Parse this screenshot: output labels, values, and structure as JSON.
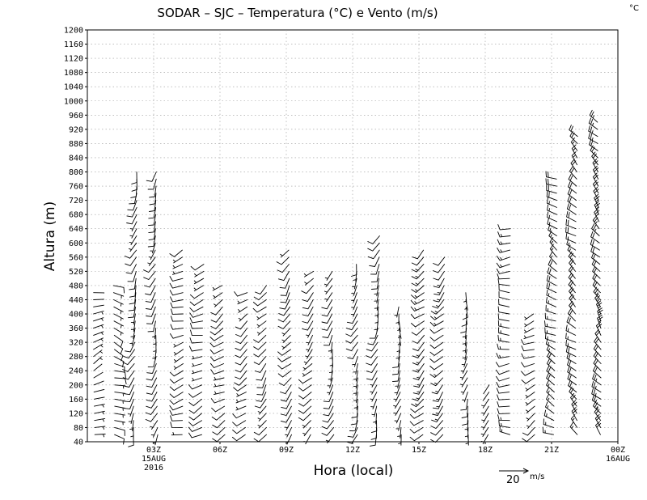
{
  "chart_data": {
    "type": "wind-barbs",
    "title": "SODAR – SJC – Temperatura (°C) e Vento (m/s)",
    "corner_unit": "°C",
    "xlabel": "Hora (local)",
    "ylabel": "Altura (m)",
    "ylim": [
      40,
      1200
    ],
    "yticks": [
      40,
      80,
      120,
      160,
      200,
      240,
      280,
      320,
      360,
      400,
      440,
      480,
      520,
      560,
      600,
      640,
      680,
      720,
      760,
      800,
      840,
      880,
      920,
      960,
      1000,
      1040,
      1080,
      1120,
      1160,
      1200
    ],
    "xlim_hours": [
      0,
      24
    ],
    "xticks": [
      {
        "hour": 3,
        "label": "03Z",
        "sub1": "15AUG",
        "sub2": "2016"
      },
      {
        "hour": 6,
        "label": "06Z",
        "sub1": "",
        "sub2": ""
      },
      {
        "hour": 9,
        "label": "09Z",
        "sub1": "",
        "sub2": ""
      },
      {
        "hour": 12,
        "label": "12Z",
        "sub1": "",
        "sub2": ""
      },
      {
        "hour": 15,
        "label": "15Z",
        "sub1": "",
        "sub2": ""
      },
      {
        "hour": 18,
        "label": "18Z",
        "sub1": "",
        "sub2": ""
      },
      {
        "hour": 21,
        "label": "21Z",
        "sub1": "",
        "sub2": ""
      },
      {
        "hour": 24,
        "label": "00Z",
        "sub1": "16AUG",
        "sub2": ""
      }
    ],
    "grid": true,
    "legend": {
      "speed": 20,
      "label": "20",
      "unit": "m/s"
    },
    "wind_profiles": [
      {
        "hour": 0.1,
        "top": 460,
        "dir": 70,
        "spd": 3
      },
      {
        "hour": 0.9,
        "top": 480,
        "dir": 110,
        "spd": 5
      },
      {
        "hour": 1.9,
        "top": 800,
        "dir": 200,
        "spd": 6
      },
      {
        "hour": 2.9,
        "top": 800,
        "dir": 200,
        "spd": 6
      },
      {
        "hour": 4.0,
        "top": 580,
        "dir": 250,
        "spd": 6
      },
      {
        "hour": 5.0,
        "top": 540,
        "dir": 250,
        "spd": 6
      },
      {
        "hour": 5.9,
        "top": 480,
        "dir": 240,
        "spd": 6
      },
      {
        "hour": 6.9,
        "top": 460,
        "dir": 230,
        "spd": 6
      },
      {
        "hour": 7.9,
        "top": 480,
        "dir": 220,
        "spd": 6
      },
      {
        "hour": 8.9,
        "top": 580,
        "dir": 220,
        "spd": 6
      },
      {
        "hour": 9.9,
        "top": 520,
        "dir": 220,
        "spd": 5
      },
      {
        "hour": 10.9,
        "top": 520,
        "dir": 200,
        "spd": 5
      },
      {
        "hour": 11.9,
        "top": 540,
        "dir": 200,
        "spd": 5
      },
      {
        "hour": 12.9,
        "top": 620,
        "dir": 200,
        "spd": 5
      },
      {
        "hour": 13.9,
        "top": 420,
        "dir": 190,
        "spd": 4
      },
      {
        "hour": 14.9,
        "top": 580,
        "dir": 225,
        "spd": 8
      },
      {
        "hour": 15.9,
        "top": 560,
        "dir": 225,
        "spd": 8
      },
      {
        "hour": 16.9,
        "top": 460,
        "dir": 190,
        "spd": 4
      },
      {
        "hour": 17.9,
        "top": 200,
        "dir": 200,
        "spd": 3
      },
      {
        "hour": 18.9,
        "top": 640,
        "dir": 270,
        "spd": 7
      },
      {
        "hour": 19.9,
        "top": 400,
        "dir": 240,
        "spd": 5
      },
      {
        "hour": 20.9,
        "top": 780,
        "dir": 300,
        "spd": 9
      },
      {
        "hour": 21.9,
        "top": 900,
        "dir": 310,
        "spd": 11
      },
      {
        "hour": 22.9,
        "top": 940,
        "dir": 320,
        "spd": 12
      }
    ]
  }
}
